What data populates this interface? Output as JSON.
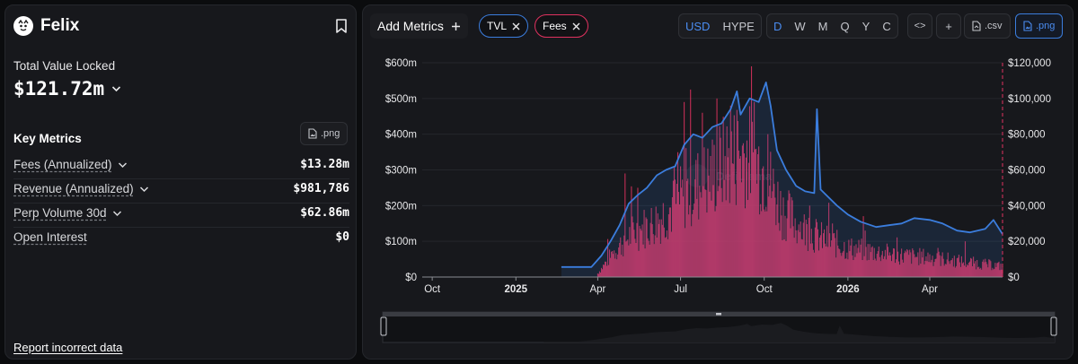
{
  "brand": {
    "name": "Felix"
  },
  "tvl": {
    "label": "Total Value Locked",
    "value": "$121.72m"
  },
  "key_metrics": {
    "title": "Key Metrics",
    "png_label": ".png",
    "items": [
      {
        "name": "Fees (Annualized)",
        "value": "$13.28m",
        "expandable": true
      },
      {
        "name": "Revenue (Annualized)",
        "value": "$981,786",
        "expandable": true
      },
      {
        "name": "Perp Volume 30d",
        "value": "$62.86m",
        "expandable": true
      },
      {
        "name": "Open Interest",
        "value": "$0",
        "expandable": false
      }
    ]
  },
  "report_link": "Report incorrect data",
  "toolbar": {
    "add_metrics": "Add Metrics",
    "pills": [
      {
        "label": "TVL",
        "color": "#3b7ddd"
      },
      {
        "label": "Fees",
        "color": "#e0325f"
      }
    ],
    "currency": [
      "USD",
      "HYPE"
    ],
    "currency_selected": "USD",
    "intervals": [
      "D",
      "W",
      "M",
      "Q",
      "Y",
      "C"
    ],
    "interval_selected": "D",
    "embed_label": "<>",
    "plus_label": "+",
    "csv_label": ".csv",
    "png_label": ".png"
  },
  "colors": {
    "tvl": "#3b7ddd",
    "fees": "#e0325f",
    "accent": "#4a8cf0"
  },
  "chart_data": {
    "type": "line",
    "x_ticks": [
      "Oct",
      "2025",
      "Apr",
      "Jul",
      "Oct",
      "2026",
      "Apr"
    ],
    "y_left_ticks": [
      "$0",
      "$100m",
      "$200m",
      "$300m",
      "$400m",
      "$500m",
      "$600m"
    ],
    "y_right_ticks": [
      "$0",
      "$20,000",
      "$40,000",
      "$60,000",
      "$80,000",
      "$100,000",
      "$120,000"
    ],
    "ylim_left": [
      0,
      600
    ],
    "ylim_right": [
      0,
      120000
    ],
    "watermark": "DefiLlama",
    "series": [
      {
        "name": "TVL",
        "axis": "left",
        "type": "area",
        "points": [
          [
            "2025-02-20",
            28
          ],
          [
            "2025-03-25",
            28
          ],
          [
            "2025-04-05",
            60
          ],
          [
            "2025-04-15",
            100
          ],
          [
            "2025-04-25",
            145
          ],
          [
            "2025-05-05",
            205
          ],
          [
            "2025-05-15",
            230
          ],
          [
            "2025-05-25",
            250
          ],
          [
            "2025-06-05",
            285
          ],
          [
            "2025-06-15",
            300
          ],
          [
            "2025-06-25",
            310
          ],
          [
            "2025-07-05",
            370
          ],
          [
            "2025-07-15",
            400
          ],
          [
            "2025-07-25",
            390
          ],
          [
            "2025-08-05",
            420
          ],
          [
            "2025-08-15",
            430
          ],
          [
            "2025-08-25",
            470
          ],
          [
            "2025-09-01",
            520
          ],
          [
            "2025-09-05",
            455
          ],
          [
            "2025-09-15",
            500
          ],
          [
            "2025-09-25",
            490
          ],
          [
            "2025-10-03",
            545
          ],
          [
            "2025-10-08",
            480
          ],
          [
            "2025-10-15",
            355
          ],
          [
            "2025-10-25",
            300
          ],
          [
            "2025-11-05",
            255
          ],
          [
            "2025-11-15",
            240
          ],
          [
            "2025-11-25",
            235
          ],
          [
            "2025-11-28",
            470
          ],
          [
            "2025-12-02",
            245
          ],
          [
            "2025-12-10",
            225
          ],
          [
            "2025-12-20",
            200
          ],
          [
            "2026-01-01",
            175
          ],
          [
            "2026-01-15",
            155
          ],
          [
            "2026-02-01",
            140
          ],
          [
            "2026-02-15",
            145
          ],
          [
            "2026-03-01",
            150
          ],
          [
            "2026-03-15",
            165
          ],
          [
            "2026-04-01",
            160
          ],
          [
            "2026-04-15",
            150
          ],
          [
            "2026-05-01",
            130
          ],
          [
            "2026-05-15",
            125
          ],
          [
            "2026-06-01",
            135
          ],
          [
            "2026-06-10",
            160
          ],
          [
            "2026-06-20",
            120
          ]
        ]
      },
      {
        "name": "Fees",
        "axis": "right",
        "type": "bar",
        "daily": true,
        "envelope": [
          [
            "2025-04-01",
            2000
          ],
          [
            "2025-04-20",
            15000
          ],
          [
            "2025-05-10",
            25000
          ],
          [
            "2025-06-01",
            30000
          ],
          [
            "2025-06-20",
            38000
          ],
          [
            "2025-07-10",
            48000
          ],
          [
            "2025-08-01",
            55000
          ],
          [
            "2025-08-20",
            65000
          ],
          [
            "2025-09-10",
            70000
          ],
          [
            "2025-10-01",
            60000
          ],
          [
            "2025-10-20",
            38000
          ],
          [
            "2025-11-10",
            28000
          ],
          [
            "2025-12-01",
            22000
          ],
          [
            "2026-01-01",
            16000
          ],
          [
            "2026-02-01",
            14000
          ],
          [
            "2026-03-01",
            12000
          ],
          [
            "2026-04-01",
            11000
          ],
          [
            "2026-05-01",
            9000
          ],
          [
            "2026-06-20",
            6000
          ]
        ],
        "peaks": [
          [
            "2025-05-01",
            58000
          ],
          [
            "2025-05-15",
            50000
          ],
          [
            "2025-07-05",
            98000
          ],
          [
            "2025-07-12",
            105000
          ],
          [
            "2025-07-25",
            92000
          ],
          [
            "2025-08-10",
            100000
          ],
          [
            "2025-08-25",
            96000
          ],
          [
            "2025-09-20",
            98000
          ],
          [
            "2025-10-05",
            80000
          ],
          [
            "2025-11-20",
            40000
          ],
          [
            "2025-12-15",
            30000
          ],
          [
            "2026-01-20",
            26000
          ],
          [
            "2026-05-10",
            20000
          ]
        ]
      }
    ]
  }
}
